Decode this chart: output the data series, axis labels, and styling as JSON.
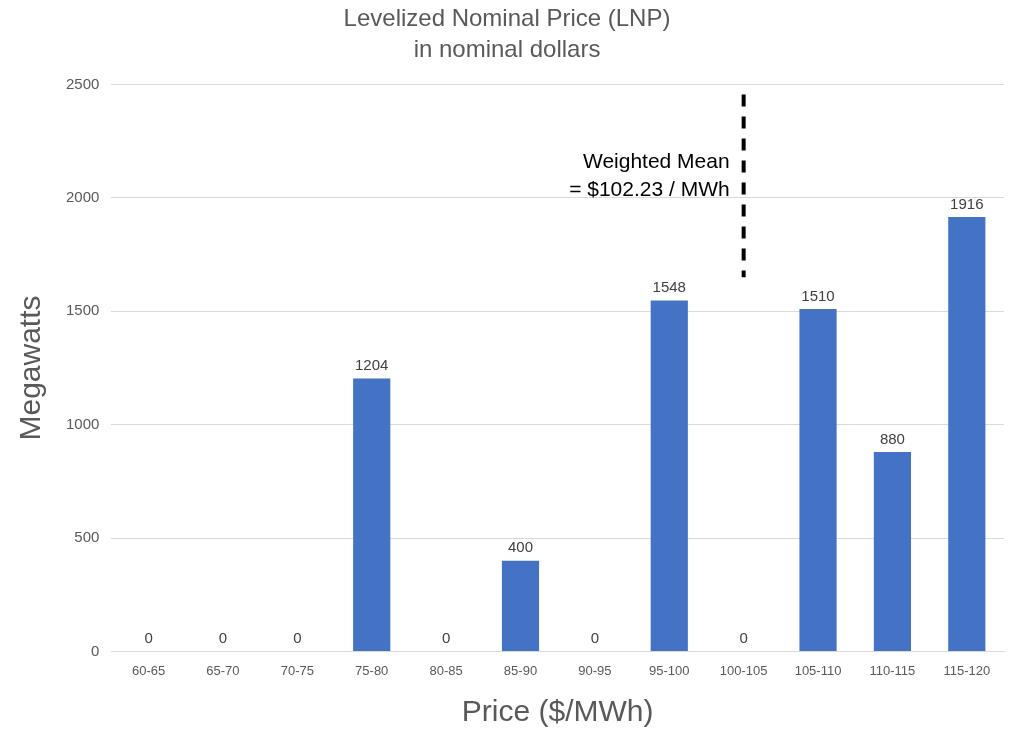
{
  "chart_data": {
    "type": "bar",
    "title": "Levelized Nominal Price (LNP)",
    "subtitle": "in nominal dollars",
    "xlabel": "Price ($/MWh)",
    "ylabel": "Megawatts",
    "categories": [
      "60-65",
      "65-70",
      "70-75",
      "75-80",
      "80-85",
      "85-90",
      "90-95",
      "95-100",
      "100-105",
      "105-110",
      "110-115",
      "115-120"
    ],
    "values": [
      0,
      0,
      0,
      1204,
      0,
      400,
      0,
      1548,
      0,
      1510,
      880,
      1916
    ],
    "color": "#4472c4",
    "ylim": [
      0,
      2500
    ],
    "yticks": [
      0,
      500,
      1000,
      1500,
      2000,
      2500
    ],
    "grid": "y",
    "data_labels": true,
    "ref_lines": [
      {
        "axis": "x",
        "value": "100-105",
        "label": "Weighted Mean\n= $102.23 / MWh",
        "color": "#000000",
        "line_style": "dashed"
      }
    ]
  }
}
